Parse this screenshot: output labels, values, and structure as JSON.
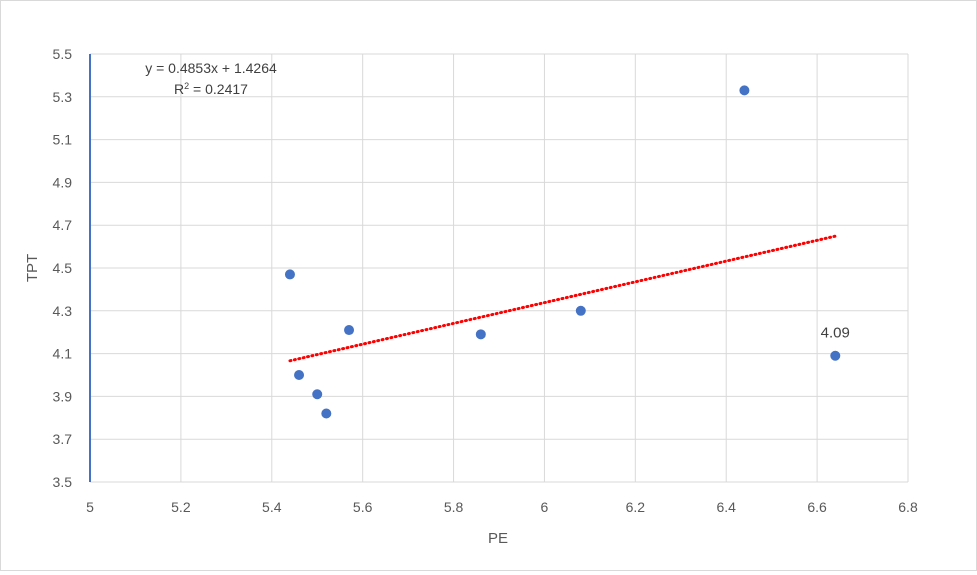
{
  "chart_data": {
    "type": "scatter",
    "title": "",
    "xlabel": "PE",
    "ylabel": "TPT",
    "xlim": [
      5,
      6.8
    ],
    "ylim": [
      3.5,
      5.5
    ],
    "x_ticks": [
      5,
      5.2,
      5.4,
      5.6,
      5.8,
      6,
      6.2,
      6.4,
      6.6,
      6.8
    ],
    "y_ticks": [
      3.5,
      3.7,
      3.9,
      4.1,
      4.3,
      4.5,
      4.7,
      4.9,
      5.1,
      5.3,
      5.5
    ],
    "x_tick_labels": [
      "5",
      "5.2",
      "5.4",
      "5.6",
      "5.8",
      "6",
      "6.2",
      "6.4",
      "6.6",
      "6.8"
    ],
    "y_tick_labels": [
      "3.5",
      "3.7",
      "3.9",
      "4.1",
      "4.3",
      "4.5",
      "4.7",
      "4.9",
      "5.1",
      "5.3",
      "5.5"
    ],
    "grid": true,
    "legend": "none",
    "marker_color": "#4472c4",
    "trendline_color": "#ff0000",
    "axis_color": "#4472c4",
    "points": [
      {
        "x": 5.44,
        "y": 4.47
      },
      {
        "x": 5.46,
        "y": 4.0
      },
      {
        "x": 5.5,
        "y": 3.91
      },
      {
        "x": 5.52,
        "y": 3.82
      },
      {
        "x": 5.57,
        "y": 4.21
      },
      {
        "x": 5.86,
        "y": 4.19
      },
      {
        "x": 6.08,
        "y": 4.3
      },
      {
        "x": 6.44,
        "y": 5.33
      },
      {
        "x": 6.64,
        "y": 4.09
      }
    ],
    "trendline": {
      "type": "linear",
      "slope": 0.4853,
      "intercept": 1.4264,
      "x_range": [
        5.44,
        6.64
      ],
      "equation": "y = 0.4853x + 1.4264",
      "r2_prefix": "R",
      "r2_power": "2",
      "r2_value": " = 0.2417"
    },
    "data_labels": [
      {
        "point_index": 8,
        "text": "4.09"
      }
    ]
  }
}
